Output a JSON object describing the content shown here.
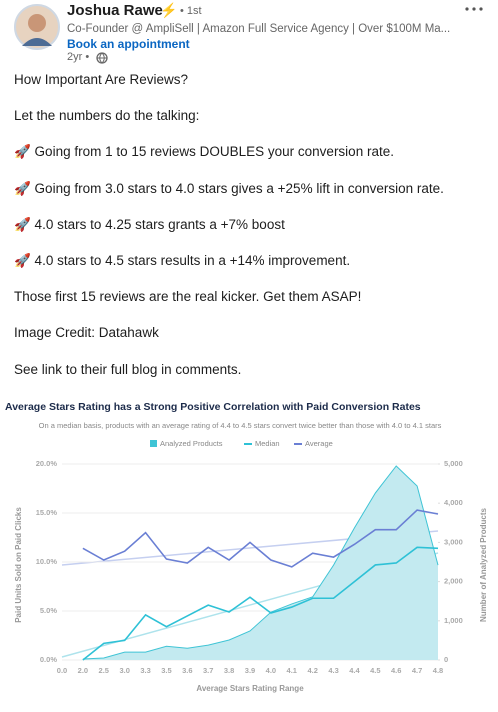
{
  "header": {
    "name": "Joshua Rawe",
    "badge": "⚡",
    "degree": "• 1st",
    "headline": "Co-Founder @ AmpliSell | Amazon Full Service Agency | Over $100M Ma...",
    "cta": "Book an appointment",
    "age": "2yr •"
  },
  "post": {
    "paragraphs": [
      "How Important Are Reviews?",
      "Let the numbers do the talking:",
      "🚀 Going from 1 to 15 reviews DOUBLES your conversion rate.",
      "🚀 Going from 3.0 stars to 4.0 stars gives a +25% lift in conversion rate.",
      "🚀 4.0 stars to 4.25 stars grants a +7% boost",
      "🚀 4.0 stars to 4.5 stars results in a +14% improvement.",
      "Those first 15 reviews are the real kicker. Get them ASAP!",
      "Image Credit: Datahawk",
      "See link to their full blog in comments."
    ]
  },
  "chart": {
    "type": "line",
    "title": "Average Stars Rating has a Strong Positive Correlation with Paid Conversion Rates",
    "subtitle": "On a median basis, products with an average rating of 4.4 to 4.5 stars convert twice better than those with 4.0 to 4.1 stars",
    "x_label": "Average Stars Rating Range",
    "y_label": "Paid Units Sold on Paid Clicks",
    "y2_label": "Number of Analyzed Products",
    "categories": [
      "0.0",
      "2.0",
      "2.5",
      "3.0",
      "3.3",
      "3.5",
      "3.6",
      "3.7",
      "3.8",
      "3.9",
      "4.0",
      "4.1",
      "4.2",
      "4.3",
      "4.4",
      "4.5",
      "4.6",
      "4.7",
      "4.8"
    ],
    "series": [
      {
        "name": "Analyzed Products",
        "type": "area",
        "axis": "y2",
        "color": "#3fc4d5",
        "values": [
          null,
          25,
          50,
          200,
          200,
          350,
          300,
          380,
          510,
          740,
          1220,
          1430,
          1610,
          2420,
          3370,
          4260,
          4950,
          4440,
          2420
        ]
      },
      {
        "name": "Median",
        "color": "#2ec1d6",
        "values": [
          null,
          0,
          1.7,
          2.0,
          4.6,
          3.4,
          4.5,
          5.6,
          4.9,
          6.4,
          4.8,
          5.4,
          6.3,
          6.3,
          8.0,
          9.7,
          9.9,
          11.5,
          11.4
        ]
      },
      {
        "name": "Average",
        "color": "#6a7fd4",
        "values": [
          null,
          11.4,
          10.2,
          11.1,
          13.0,
          10.3,
          9.9,
          11.5,
          10.2,
          12.0,
          10.2,
          9.5,
          10.9,
          10.5,
          11.8,
          13.3,
          13.3,
          15.3,
          14.9
        ]
      }
    ],
    "ylim": [
      0,
      20
    ],
    "yticks": [
      {
        "value": 0,
        "label": "0.0%"
      },
      {
        "value": 5,
        "label": "5.0%"
      },
      {
        "value": 10,
        "label": "10.0%"
      },
      {
        "value": 15,
        "label": "15.0%"
      },
      {
        "value": 20,
        "label": "20.0%"
      }
    ],
    "y2lim": [
      0,
      5000
    ],
    "y2ticks": [
      0,
      {
        "value": 1000,
        "label": "1,000"
      },
      {
        "value": 2000,
        "label": "2,000"
      },
      {
        "value": 3000,
        "label": "3,000"
      },
      {
        "value": 4000,
        "label": "4,000"
      },
      {
        "value": 5000,
        "label": "5,000"
      }
    ],
    "grid": true
  }
}
